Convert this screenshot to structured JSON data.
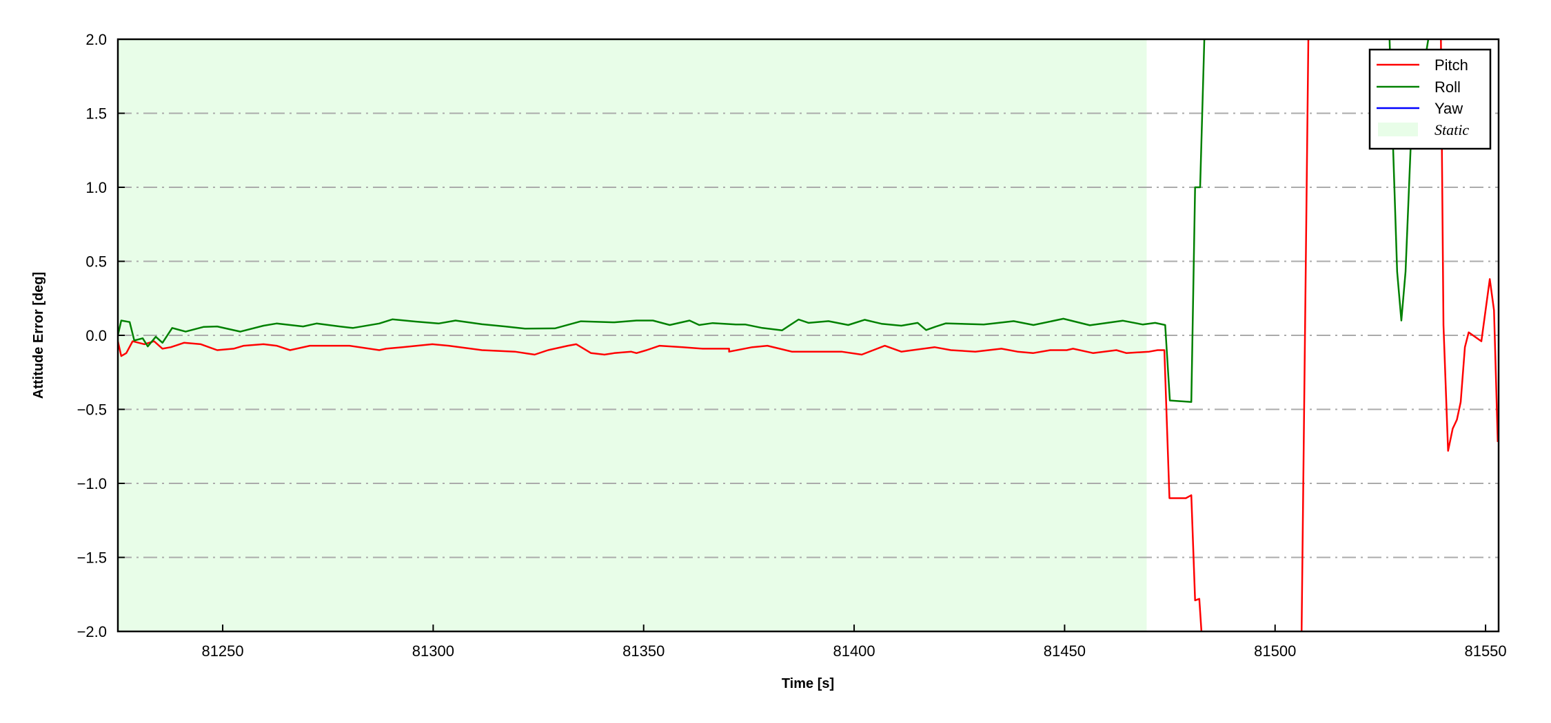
{
  "chart_data": {
    "type": "line",
    "title": "",
    "xlabel": "Time [s]",
    "ylabel": "Attitude Error [deg]",
    "xlim": [
      81225.1,
      81553.1
    ],
    "ylim": [
      -2.0,
      2.0
    ],
    "xticks": [
      81250,
      81300,
      81350,
      81400,
      81450,
      81500,
      81550
    ],
    "xtick_labels": [
      "81250",
      "81300",
      "81350",
      "81400",
      "81450",
      "81500",
      "81550"
    ],
    "yticks": [
      -2.0,
      -1.5,
      -1.0,
      -0.5,
      0.0,
      0.5,
      1.0,
      1.5,
      2.0
    ],
    "ytick_labels": [
      "−2.0",
      "−1.5",
      "−1.0",
      "−0.5",
      "0.0",
      "0.5",
      "1.0",
      "1.5",
      "2.0"
    ],
    "grid": {
      "axis": "y",
      "style": "dash-dot",
      "color": "#aaaaaa"
    },
    "legend_position": "top-right",
    "shaded_regions": [
      {
        "name": "Static",
        "x_start": 81225.1,
        "x_end": 81469.5,
        "color": "#e8fde8"
      }
    ],
    "series": [
      {
        "name": "Pitch",
        "color": "#ff0000",
        "x": [
          81225.1,
          81225.9,
          81227.1,
          81228.6,
          81231.4,
          81233.7,
          81235.7,
          81237.7,
          81240.8,
          81244.8,
          81248.7,
          81252.6,
          81255,
          81259.7,
          81262.8,
          81266,
          81270.7,
          81280.1,
          81287.2,
          81288.8,
          81292.7,
          81299.8,
          81303.7,
          81311.6,
          81319.4,
          81324.1,
          81327.3,
          81332,
          81334,
          81337.5,
          81340.7,
          81343,
          81347,
          81348.3,
          81350.7,
          81353.8,
          81359.3,
          81364,
          81370.3,
          81370.3,
          81375.8,
          81379.4,
          81385.2,
          81392.3,
          81397,
          81401.8,
          81407.3,
          81407.3,
          81411.2,
          81419.1,
          81423,
          81428.8,
          81435,
          81438.8,
          81442.5,
          81446.6,
          81450.5,
          81452,
          81456.8,
          81462.3,
          81464.7,
          81470.1,
          81472.1,
          81473.7,
          81474.9,
          81478.8,
          81480.1,
          81481,
          81482,
          81482.5,
          81483.5,
          81506,
          81506.3,
          81507.9,
          81508.2,
          81539,
          81539.4,
          81540,
          81541.1,
          81542.2,
          81543.2,
          81544.1,
          81545.1,
          81546,
          81549,
          81551,
          81552,
          81552.9
        ],
        "y": [
          -0.04,
          -0.14,
          -0.12,
          -0.04,
          -0.06,
          -0.04,
          -0.09,
          -0.08,
          -0.05,
          -0.06,
          -0.1,
          -0.09,
          -0.07,
          -0.06,
          -0.07,
          -0.1,
          -0.07,
          -0.07,
          -0.1,
          -0.09,
          -0.08,
          -0.06,
          -0.07,
          -0.1,
          -0.11,
          -0.13,
          -0.1,
          -0.07,
          -0.06,
          -0.12,
          -0.13,
          -0.12,
          -0.11,
          -0.12,
          -0.1,
          -0.07,
          -0.08,
          -0.09,
          -0.09,
          -0.11,
          -0.08,
          -0.07,
          -0.11,
          -0.11,
          -0.11,
          -0.13,
          -0.07,
          -0.07,
          -0.11,
          -0.08,
          -0.1,
          -0.11,
          -0.09,
          -0.11,
          -0.12,
          -0.1,
          -0.1,
          -0.09,
          -0.12,
          -0.1,
          -0.12,
          -0.11,
          -0.1,
          -0.1,
          -1.1,
          -1.1,
          -1.08,
          -1.79,
          -1.78,
          -2.0,
          -2.5,
          -2.5,
          -2.0,
          2.0,
          2.5,
          2.5,
          2.0,
          0.07,
          -0.78,
          -0.63,
          -0.57,
          -0.45,
          -0.08,
          0.02,
          -0.04,
          0.38,
          0.17,
          -0.72
        ]
      },
      {
        "name": "Roll",
        "color": "#008000",
        "x": [
          81225.1,
          81225.9,
          81227.9,
          81229,
          81231,
          81232.2,
          81234.1,
          81235.7,
          81238,
          81241.2,
          81245.5,
          81248.7,
          81254.2,
          81259.7,
          81262.8,
          81269.1,
          81272.3,
          81277.8,
          81280.9,
          81287.2,
          81290.3,
          81295.8,
          81301.3,
          81305.3,
          81311.6,
          81317.1,
          81321.8,
          81328.9,
          81335.1,
          81343,
          81348.3,
          81352.2,
          81356.2,
          81360.9,
          81363.2,
          81366.4,
          81371.9,
          81374.2,
          81378.2,
          81382.9,
          81386.8,
          81389.2,
          81393.9,
          81398.6,
          81402.5,
          81406.5,
          81411.2,
          81415.1,
          81417.1,
          81419.4,
          81421.8,
          81430.8,
          81433.2,
          81437.9,
          81442.6,
          81449.7,
          81456,
          81463.8,
          81468.6,
          81471.5,
          81473.9,
          81475,
          81480.1,
          81481,
          81482.2,
          81483.2,
          81484,
          81526,
          81527.2,
          81529,
          81530,
          81531,
          81532.2,
          81536.4,
          81538
        ],
        "y": [
          0.0,
          0.1,
          0.09,
          -0.035,
          -0.02,
          -0.075,
          -0.01,
          -0.05,
          0.05,
          0.025,
          0.057,
          0.06,
          0.025,
          0.065,
          0.08,
          0.06,
          0.08,
          0.06,
          0.05,
          0.08,
          0.108,
          0.093,
          0.08,
          0.1,
          0.075,
          0.06,
          0.045,
          0.047,
          0.095,
          0.088,
          0.1,
          0.1,
          0.07,
          0.1,
          0.07,
          0.083,
          0.073,
          0.073,
          0.05,
          0.034,
          0.107,
          0.084,
          0.096,
          0.07,
          0.105,
          0.078,
          0.065,
          0.084,
          0.036,
          0.059,
          0.081,
          0.073,
          0.081,
          0.096,
          0.07,
          0.112,
          0.068,
          0.099,
          0.073,
          0.084,
          0.07,
          -0.44,
          -0.45,
          1.0,
          1.0,
          2.0,
          2.5,
          2.5,
          2.0,
          0.43,
          0.1,
          0.43,
          1.27,
          2.0,
          2.5
        ]
      },
      {
        "name": "Yaw",
        "color": "#0000ff",
        "x": [],
        "y": []
      }
    ],
    "legend": [
      {
        "label": "Pitch",
        "kind": "line",
        "color": "#ff0000"
      },
      {
        "label": "Roll",
        "kind": "line",
        "color": "#008000"
      },
      {
        "label": "Yaw",
        "kind": "line",
        "color": "#0000ff"
      },
      {
        "label": "Static",
        "kind": "patch",
        "color": "#e8fde8"
      }
    ]
  }
}
